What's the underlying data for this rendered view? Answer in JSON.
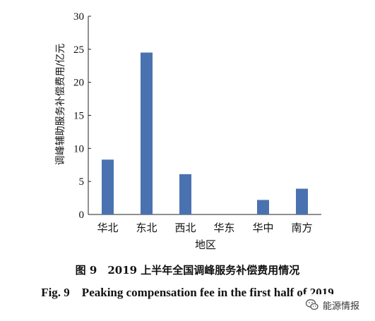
{
  "chart_data": {
    "type": "bar",
    "categories": [
      "华北",
      "东北",
      "西北",
      "华东",
      "华中",
      "南方"
    ],
    "values": [
      8.3,
      24.5,
      6.1,
      0,
      2.2,
      3.9
    ],
    "xlabel": "地区",
    "ylabel": "调峰辅助服务补偿费用/亿元",
    "ylim": [
      0,
      30
    ],
    "yticks": [
      0,
      5,
      10,
      15,
      20,
      25,
      30
    ],
    "bar_color": "#4a72b0",
    "grid": false
  },
  "caption": {
    "cn": "图 9　2019 上半年全国调峰服务补偿费用情况",
    "en": "Fig. 9　Peaking compensation fee in the first half of 2019"
  },
  "watermark": {
    "text": "能源情报",
    "icon": "wechat-icon"
  }
}
